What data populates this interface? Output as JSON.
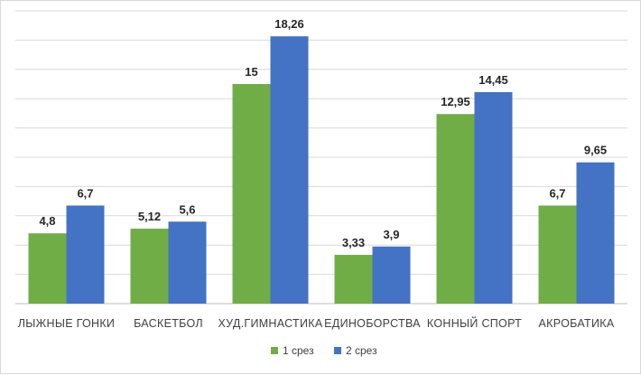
{
  "chart_data": {
    "type": "bar",
    "categories": [
      "ЛЫЖНЫЕ ГОНКИ",
      "БАСКЕТБОЛ",
      "ХУД.ГИМНАСТИКА",
      "ЕДИНОБОРСТВА",
      "КОННЫЙ СПОРТ",
      "АКРОБАТИКА"
    ],
    "series": [
      {
        "name": "1 срез",
        "color": "#70ad47",
        "values": [
          4.8,
          5.12,
          15,
          3.33,
          12.95,
          6.7
        ],
        "labels": [
          "4,8",
          "5,12",
          "15",
          "3,33",
          "12,95",
          "6,7"
        ]
      },
      {
        "name": "2 срез",
        "color": "#4472c4",
        "values": [
          6.7,
          5.6,
          18.26,
          3.9,
          14.45,
          9.65
        ],
        "labels": [
          "6,7",
          "5,6",
          "18,26",
          "3,9",
          "14,45",
          "9,65"
        ]
      }
    ],
    "ylim": [
      0,
      20
    ],
    "grid": true,
    "legend_position": "bottom"
  }
}
